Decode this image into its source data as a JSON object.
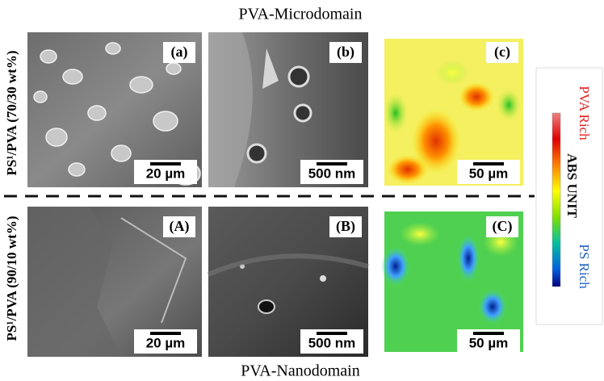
{
  "figure": {
    "top_title": "PVA-Microdomain",
    "bottom_title": "PVA-Nanodomain",
    "rows": [
      {
        "label": "PS¹/PVA (70/30 wt%)",
        "panels": [
          {
            "label": "(a)",
            "scale_bar": "20 µm"
          },
          {
            "label": "(b)",
            "scale_bar": "500 nm"
          },
          {
            "label": "(c)",
            "scale_bar": "50 µm"
          }
        ]
      },
      {
        "label": "PS¹/PVA (90/10 wt%)",
        "panels": [
          {
            "label": "(A)",
            "scale_bar": "20 µm"
          },
          {
            "label": "(B)",
            "scale_bar": "500 nm"
          },
          {
            "label": "(C)",
            "scale_bar": "50 µm"
          }
        ]
      }
    ],
    "colorbar": {
      "top_label": "PVA Rich",
      "middle_label": "ABS UNIT",
      "bottom_label": "PS Rich"
    }
  }
}
